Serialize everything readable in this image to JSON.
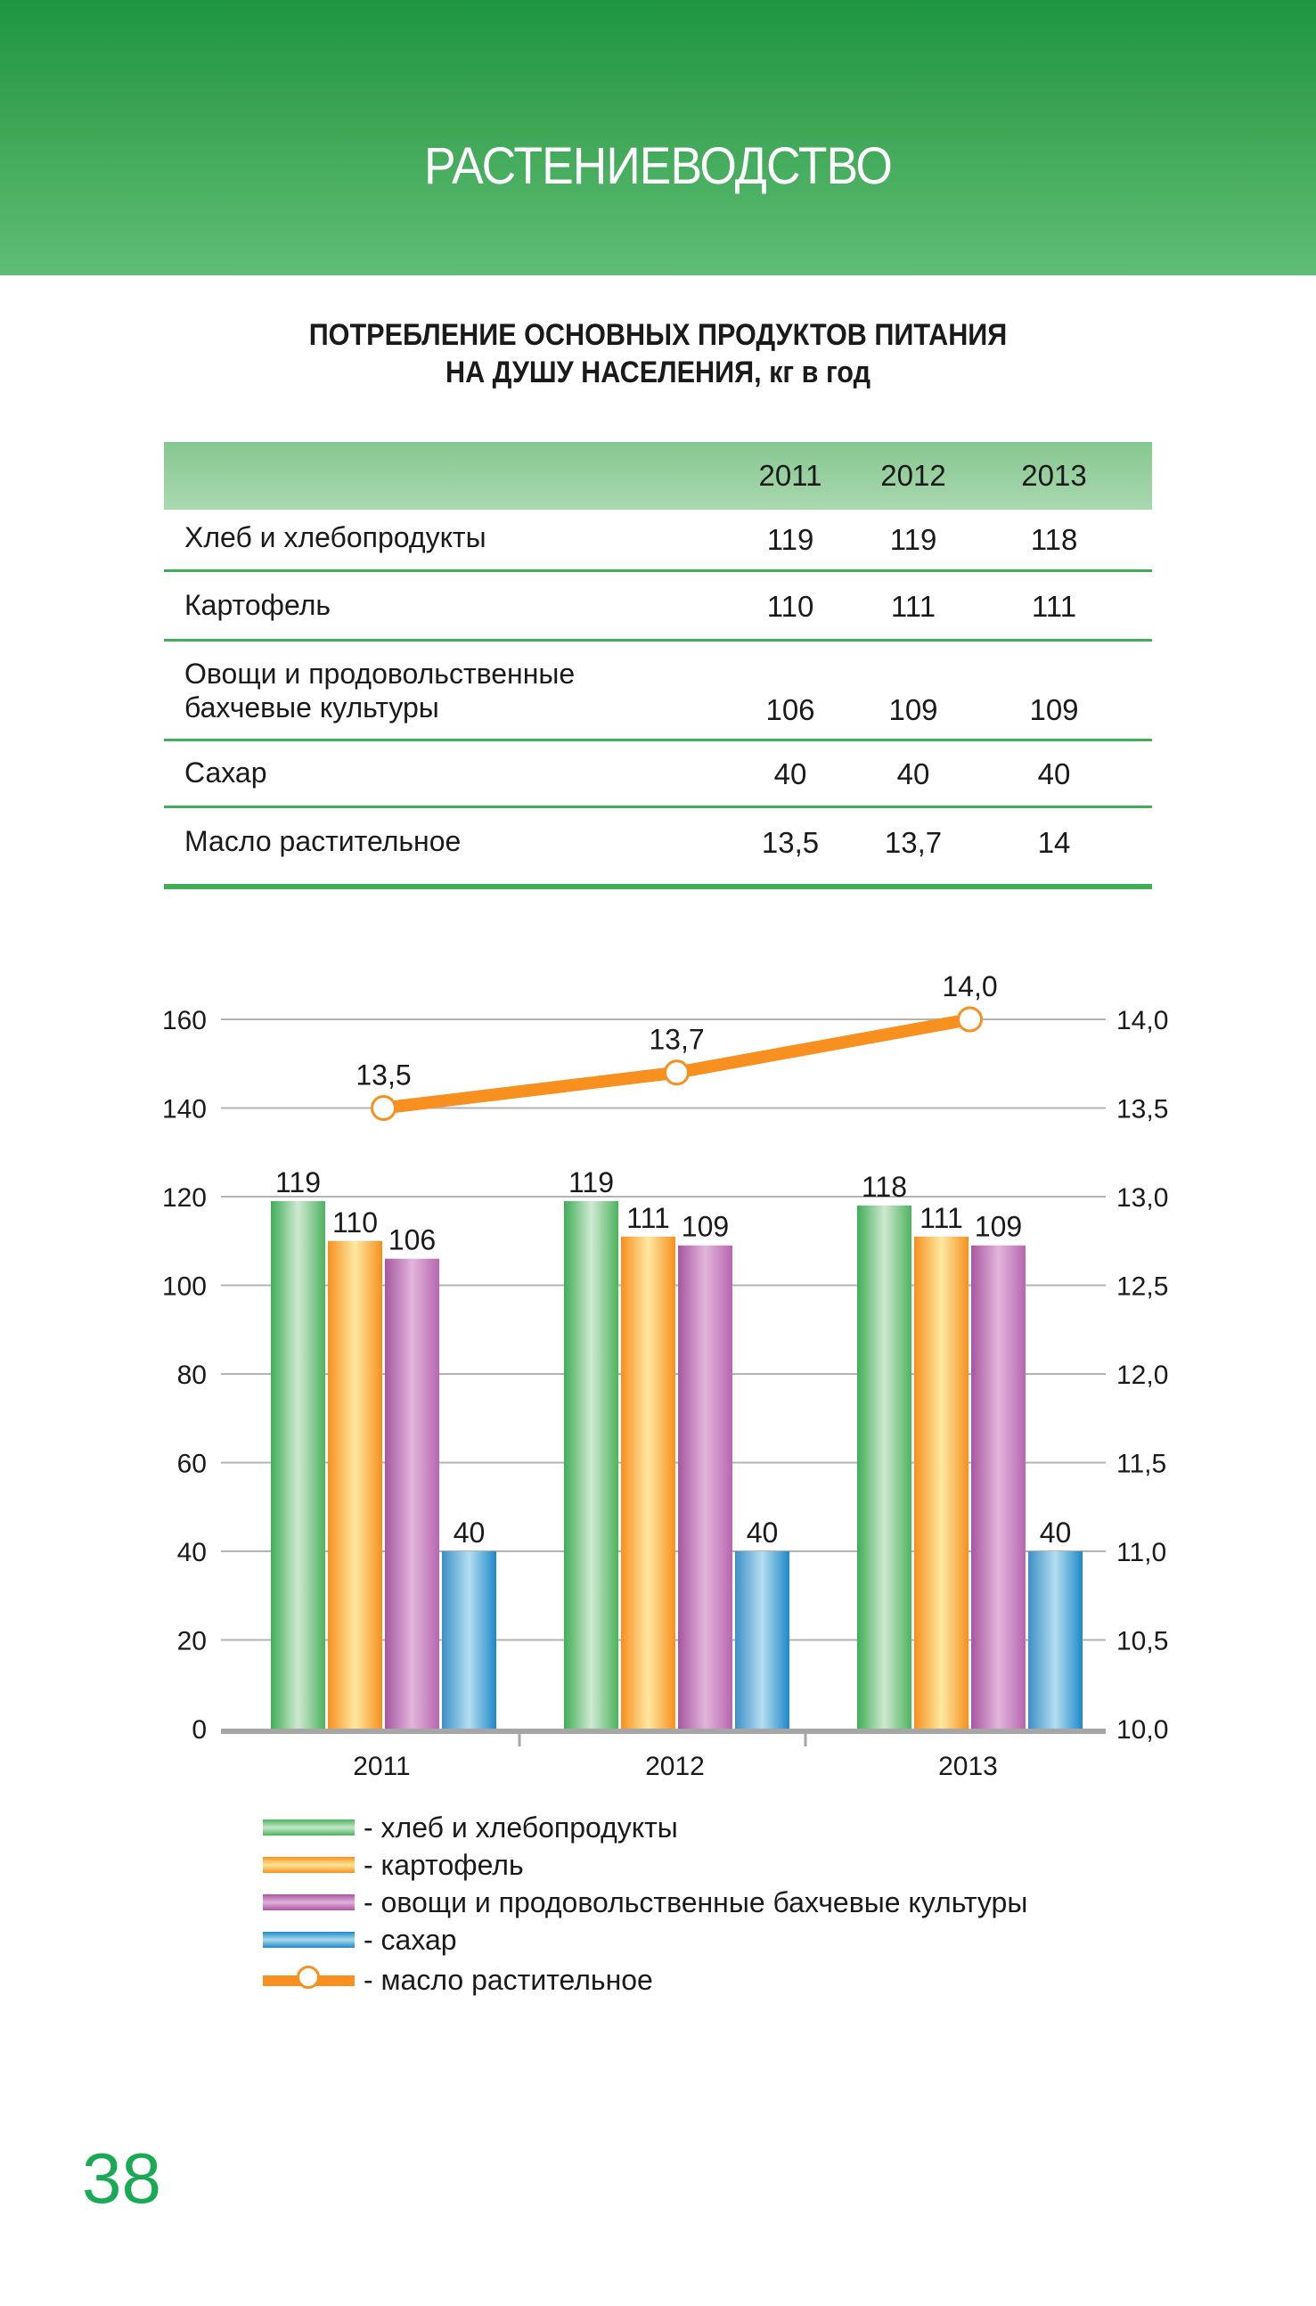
{
  "header": {
    "section_title": "РАСТЕНИЕВОДСТВО"
  },
  "title": {
    "line1": "ПОТРЕБЛЕНИЕ ОСНОВНЫХ ПРОДУКТОВ ПИТАНИЯ",
    "line2": "НА ДУШУ НАСЕЛЕНИЯ, кг в год"
  },
  "table": {
    "columns": [
      "2011",
      "2012",
      "2013"
    ],
    "rows": [
      {
        "label_lines": [
          "Хлеб и хлебопродукты"
        ],
        "values": [
          "119",
          "119",
          "118"
        ]
      },
      {
        "label_lines": [
          "Картофель"
        ],
        "values": [
          "110",
          "111",
          "111"
        ]
      },
      {
        "label_lines": [
          "Овощи и продовольственные",
          "бахчевые культуры"
        ],
        "values": [
          "106",
          "109",
          "109"
        ]
      },
      {
        "label_lines": [
          "Сахар"
        ],
        "values": [
          "40",
          "40",
          "40"
        ]
      },
      {
        "label_lines": [
          "Масло растительное"
        ],
        "values": [
          "13,5",
          "13,7",
          "14"
        ]
      }
    ]
  },
  "colors": {
    "accent_green": "#1aaa55",
    "bread": "#4db35e",
    "potato": "#f7901e",
    "vegetables": "#a856a0",
    "sugar": "#1e88c8",
    "oil": "#f7901e"
  },
  "chart_data": {
    "type": "bar",
    "title": "ПОТРЕБЛЕНИЕ ОСНОВНЫХ ПРОДУКТОВ ПИТАНИЯ НА ДУШУ НАСЕЛЕНИЯ, кг в год",
    "categories": [
      "2011",
      "2012",
      "2013"
    ],
    "xlabel": "",
    "ylabel": "",
    "ylim": [
      0,
      160
    ],
    "y_ticks": [
      "0",
      "20",
      "40",
      "60",
      "80",
      "100",
      "120",
      "140",
      "160"
    ],
    "y2lim": [
      10.0,
      14.0
    ],
    "y2_ticks": [
      "10,0",
      "10,5",
      "11,0",
      "11,5",
      "12,0",
      "12,5",
      "13,0",
      "13,5",
      "14,0"
    ],
    "grid": true,
    "legend_position": "bottom",
    "series": [
      {
        "name": "хлеб и хлебопродукты",
        "kind": "bar",
        "axis": "left",
        "color": "#4db35e",
        "values": [
          119,
          119,
          118
        ],
        "labels": [
          "119",
          "119",
          "118"
        ]
      },
      {
        "name": "картофель",
        "kind": "bar",
        "axis": "left",
        "color": "#f7901e",
        "values": [
          110,
          111,
          111
        ],
        "labels": [
          "110",
          "111",
          "111"
        ]
      },
      {
        "name": "овощи и продовольственные бахчевые культуры",
        "kind": "bar",
        "axis": "left",
        "color": "#a856a0",
        "values": [
          106,
          109,
          109
        ],
        "labels": [
          "106",
          "109",
          "109"
        ]
      },
      {
        "name": "сахар",
        "kind": "bar",
        "axis": "left",
        "color": "#1e88c8",
        "values": [
          40,
          40,
          40
        ],
        "labels": [
          "40",
          "40",
          "40"
        ]
      },
      {
        "name": "масло растительное",
        "kind": "line",
        "axis": "right",
        "color": "#f7901e",
        "values": [
          13.5,
          13.7,
          14.0
        ],
        "labels": [
          "13,5",
          "13,7",
          "14,0"
        ]
      }
    ]
  },
  "legend": {
    "items": [
      "- хлеб и хлебопродукты",
      "- картофель",
      "- овощи и продовольственные бахчевые культуры",
      "- сахар",
      "- масло растительное"
    ]
  },
  "page": {
    "number": "38"
  }
}
